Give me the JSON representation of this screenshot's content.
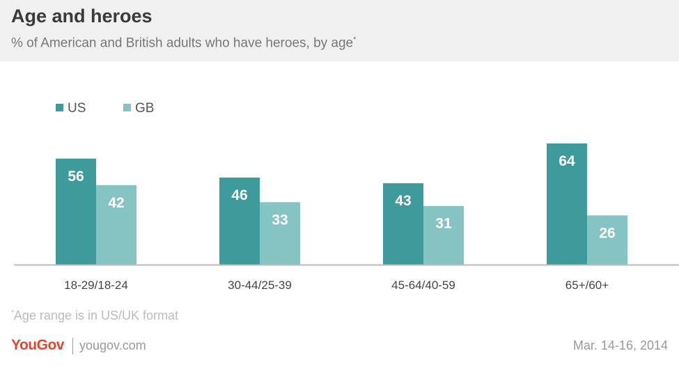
{
  "title": "Age and heroes",
  "subtitle": "% of American and British adults who have heroes, by age",
  "subtitle_mark": "*",
  "note": "Age range is in US/UK format",
  "note_mark": "*",
  "logo": "YouGov",
  "site": "yougov.com",
  "date": "Mar. 14-16, 2014",
  "colors": {
    "us": "#3f9b9b",
    "gb": "#86c3c3",
    "header_bg": "#f0f0f0",
    "logo": "#e8432e"
  },
  "chart_data": {
    "type": "bar",
    "categories": [
      "18-29/18-24",
      "30-44/25-39",
      "45-64/40-59",
      "65+/60+"
    ],
    "series": [
      {
        "name": "US",
        "values": [
          56,
          46,
          43,
          64
        ]
      },
      {
        "name": "GB",
        "values": [
          42,
          33,
          31,
          26
        ]
      }
    ],
    "ylim": [
      0,
      64
    ],
    "grid": false,
    "legend": "top-left",
    "data_labels": true
  }
}
